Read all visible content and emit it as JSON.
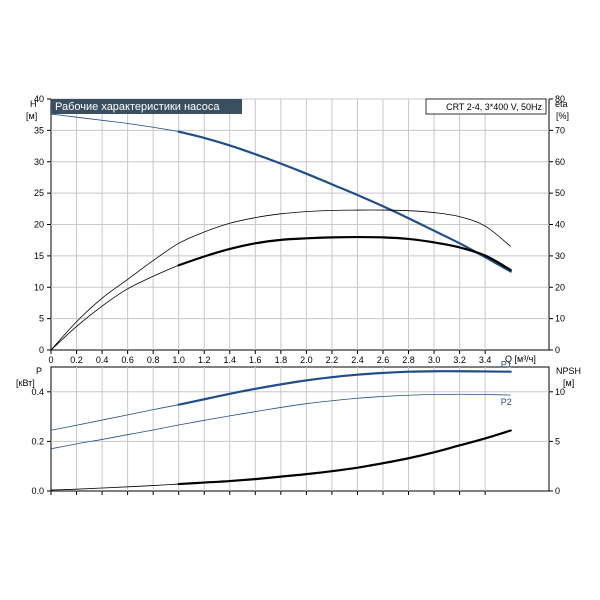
{
  "chart_data": [
    {
      "type": "line",
      "title": "Рабочие характеристики насоса",
      "model_label": "CRT 2-4, 3*400 V, 50Hz",
      "left_axis": {
        "label": "H",
        "unit": "[м]",
        "ylim": [
          0,
          40
        ],
        "ticks": [
          0,
          5,
          10,
          15,
          20,
          25,
          30,
          35,
          40
        ]
      },
      "right_axis": {
        "label": "eta",
        "unit": "[%]",
        "ylim": [
          0,
          80
        ],
        "ticks": [
          0,
          10,
          20,
          30,
          40,
          50,
          60,
          70,
          80
        ]
      },
      "x_axis": {
        "label": "Q [м³/ч]",
        "xlim": [
          0,
          3.9
        ],
        "ticks": [
          0,
          0.2,
          0.4,
          0.6,
          0.8,
          1.0,
          1.2,
          1.4,
          1.6,
          1.8,
          2.0,
          2.2,
          2.4,
          2.6,
          2.8,
          3.0,
          3.2,
          3.4
        ],
        "tick_labels": [
          "0",
          "0.2",
          "0.4",
          "0.6",
          "0.8",
          "1.0",
          "1.2",
          "1.4",
          "1.6",
          "1.8",
          "2.0",
          "2.2",
          "2.4",
          "2.6",
          "2.8",
          "3.0",
          "3.2",
          "3.4"
        ]
      },
      "grid": true,
      "series": [
        {
          "axis": "left",
          "color": "#1f4e8c",
          "thin": {
            "x": [
              0,
              0.2,
              0.4,
              0.6,
              0.8,
              1.0
            ],
            "y": [
              37.6,
              37.1,
              36.6,
              36.1,
              35.5,
              34.8
            ]
          },
          "bold": {
            "x": [
              1.0,
              1.2,
              1.4,
              1.6,
              1.8,
              2.0,
              2.2,
              2.4,
              2.6,
              2.8,
              3.0,
              3.2,
              3.4,
              3.6
            ],
            "y": [
              34.8,
              33.8,
              32.6,
              31.2,
              29.7,
              28.1,
              26.4,
              24.7,
              22.9,
              21.0,
              19.0,
              17.0,
              14.8,
              12.5
            ]
          }
        },
        {
          "axis": "right",
          "color": "#000000",
          "thin": {
            "x": [
              0,
              0.2,
              0.4,
              0.6,
              0.8,
              1.0,
              1.2,
              1.4,
              1.6,
              1.8,
              2.0,
              2.2,
              2.4,
              2.6,
              2.8,
              3.0,
              3.2,
              3.4,
              3.6
            ],
            "y": [
              0,
              9,
              16.5,
              22.5,
              28.5,
              34,
              37.6,
              40.4,
              42.2,
              43.4,
              44.1,
              44.5,
              44.6,
              44.6,
              44.4,
              43.8,
              42.5,
              39.5,
              33
            ]
          }
        },
        {
          "axis": "right",
          "color": "#000000",
          "thin": {
            "x": [
              0,
              0.2,
              0.4,
              0.6,
              0.8,
              1.0
            ],
            "y": [
              0,
              7.5,
              14,
              19.5,
              23.5,
              27
            ]
          },
          "bold": {
            "x": [
              1.0,
              1.2,
              1.4,
              1.6,
              1.8,
              2.0,
              2.2,
              2.4,
              2.6,
              2.8,
              3.0,
              3.2,
              3.4,
              3.6
            ],
            "y": [
              27,
              29.8,
              32.2,
              34,
              35.1,
              35.6,
              35.9,
              36.0,
              35.9,
              35.4,
              34.3,
              32.7,
              30.1,
              25.5
            ]
          }
        }
      ]
    },
    {
      "type": "line",
      "left_axis": {
        "label": "P",
        "unit": "[кВт]",
        "ylim": [
          0,
          0.5
        ],
        "ticks": [
          0,
          0.2,
          0.4
        ],
        "tick_labels": [
          "0.0",
          "0.2",
          "0.4"
        ]
      },
      "right_axis": {
        "label": "NPSH",
        "unit": "[м]",
        "ylim": [
          0,
          12.5
        ],
        "ticks": [
          0,
          5,
          10
        ]
      },
      "xlim": [
        0,
        3.9
      ],
      "grid": true,
      "series": [
        {
          "name": "P1",
          "axis": "left",
          "color": "#1f4e8c",
          "thin": {
            "x": [
              0,
              0.2,
              0.4,
              0.6,
              0.8,
              1.0
            ],
            "y": [
              0.245,
              0.265,
              0.286,
              0.307,
              0.328,
              0.348
            ]
          },
          "bold": {
            "x": [
              1.0,
              1.2,
              1.4,
              1.6,
              1.8,
              2.0,
              2.2,
              2.4,
              2.6,
              2.8,
              3.0,
              3.2,
              3.4,
              3.6
            ],
            "y": [
              0.348,
              0.37,
              0.392,
              0.412,
              0.43,
              0.446,
              0.459,
              0.469,
              0.476,
              0.481,
              0.483,
              0.483,
              0.482,
              0.481
            ]
          }
        },
        {
          "name": "P2",
          "axis": "left",
          "color": "#1f4e8c",
          "thin": {
            "x": [
              0,
              0.2,
              0.4,
              0.6,
              0.8,
              1.0,
              1.2,
              1.4,
              1.6,
              1.8,
              2.0,
              2.2,
              2.4,
              2.6,
              2.8,
              3.0,
              3.2,
              3.4,
              3.6
            ],
            "y": [
              0.17,
              0.19,
              0.208,
              0.227,
              0.246,
              0.266,
              0.285,
              0.303,
              0.32,
              0.337,
              0.352,
              0.364,
              0.374,
              0.381,
              0.386,
              0.389,
              0.39,
              0.389,
              0.387
            ]
          }
        },
        {
          "axis": "right",
          "color": "#000000",
          "thin": {
            "x": [
              0,
              0.2,
              0.4,
              0.6,
              0.8,
              1.0
            ],
            "y": [
              0.1,
              0.18,
              0.3,
              0.42,
              0.55,
              0.7
            ]
          },
          "bold": {
            "x": [
              1.0,
              1.2,
              1.4,
              1.6,
              1.8,
              2.0,
              2.2,
              2.4,
              2.6,
              2.8,
              3.0,
              3.2,
              3.4,
              3.6
            ],
            "y": [
              0.7,
              0.85,
              1.0,
              1.2,
              1.45,
              1.7,
              2.0,
              2.35,
              2.8,
              3.3,
              3.9,
              4.6,
              5.3,
              6.1
            ]
          }
        }
      ]
    }
  ]
}
